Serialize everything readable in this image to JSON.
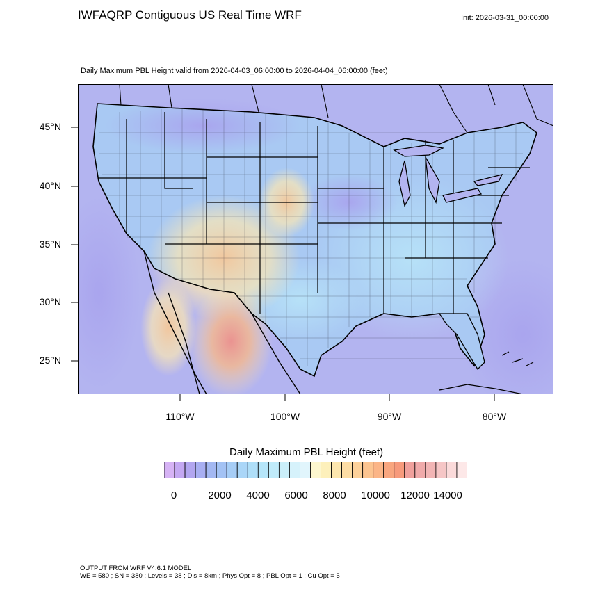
{
  "header": {
    "title": "IWFAQRP Contiguous US Real Time WRF",
    "init": "Init: 2026-03-31_00:00:00"
  },
  "map": {
    "subtitle": "Daily Maximum PBL Height valid from 2026-04-03_06:00:00 to 2026-04-04_06:00:00   (feet)",
    "lat_labels": [
      "45°N",
      "40°N",
      "35°N",
      "30°N",
      "25°N"
    ],
    "lon_labels": [
      "110°W",
      "100°W",
      "90°W",
      "80°W"
    ]
  },
  "colorbar": {
    "title": "Daily Maximum PBL Height  (feet)",
    "ticks": [
      "0",
      "2000",
      "4000",
      "6000",
      "8000",
      "10000",
      "12000",
      "14000"
    ],
    "colors": [
      "#d6b3f5",
      "#c4a8f2",
      "#b2a6f0",
      "#a8aff2",
      "#a3b8f2",
      "#a3c2f4",
      "#a6cdf6",
      "#aad6f8",
      "#afdff9",
      "#b6e6fa",
      "#c0ebfa",
      "#cbeffa",
      "#d6f2fb",
      "#e1f5fc",
      "#fdf7cf",
      "#fdf0bb",
      "#fde7ae",
      "#fddda4",
      "#fdd19a",
      "#fcc490",
      "#fbb587",
      "#f9a67f",
      "#f79a7c",
      "#f0a09c",
      "#f0aaaa",
      "#f2b5b5",
      "#f6c6c6",
      "#fbdada",
      "#fde8e8"
    ]
  },
  "footer": {
    "line1": "OUTPUT FROM WRF V4.6.1 MODEL",
    "line2": "WE = 580 ; SN = 380 ; Levels = 38 ; Dis = 8km ; Phys Opt = 8 ; PBL Opt = 1 ; Cu Opt = 5"
  }
}
